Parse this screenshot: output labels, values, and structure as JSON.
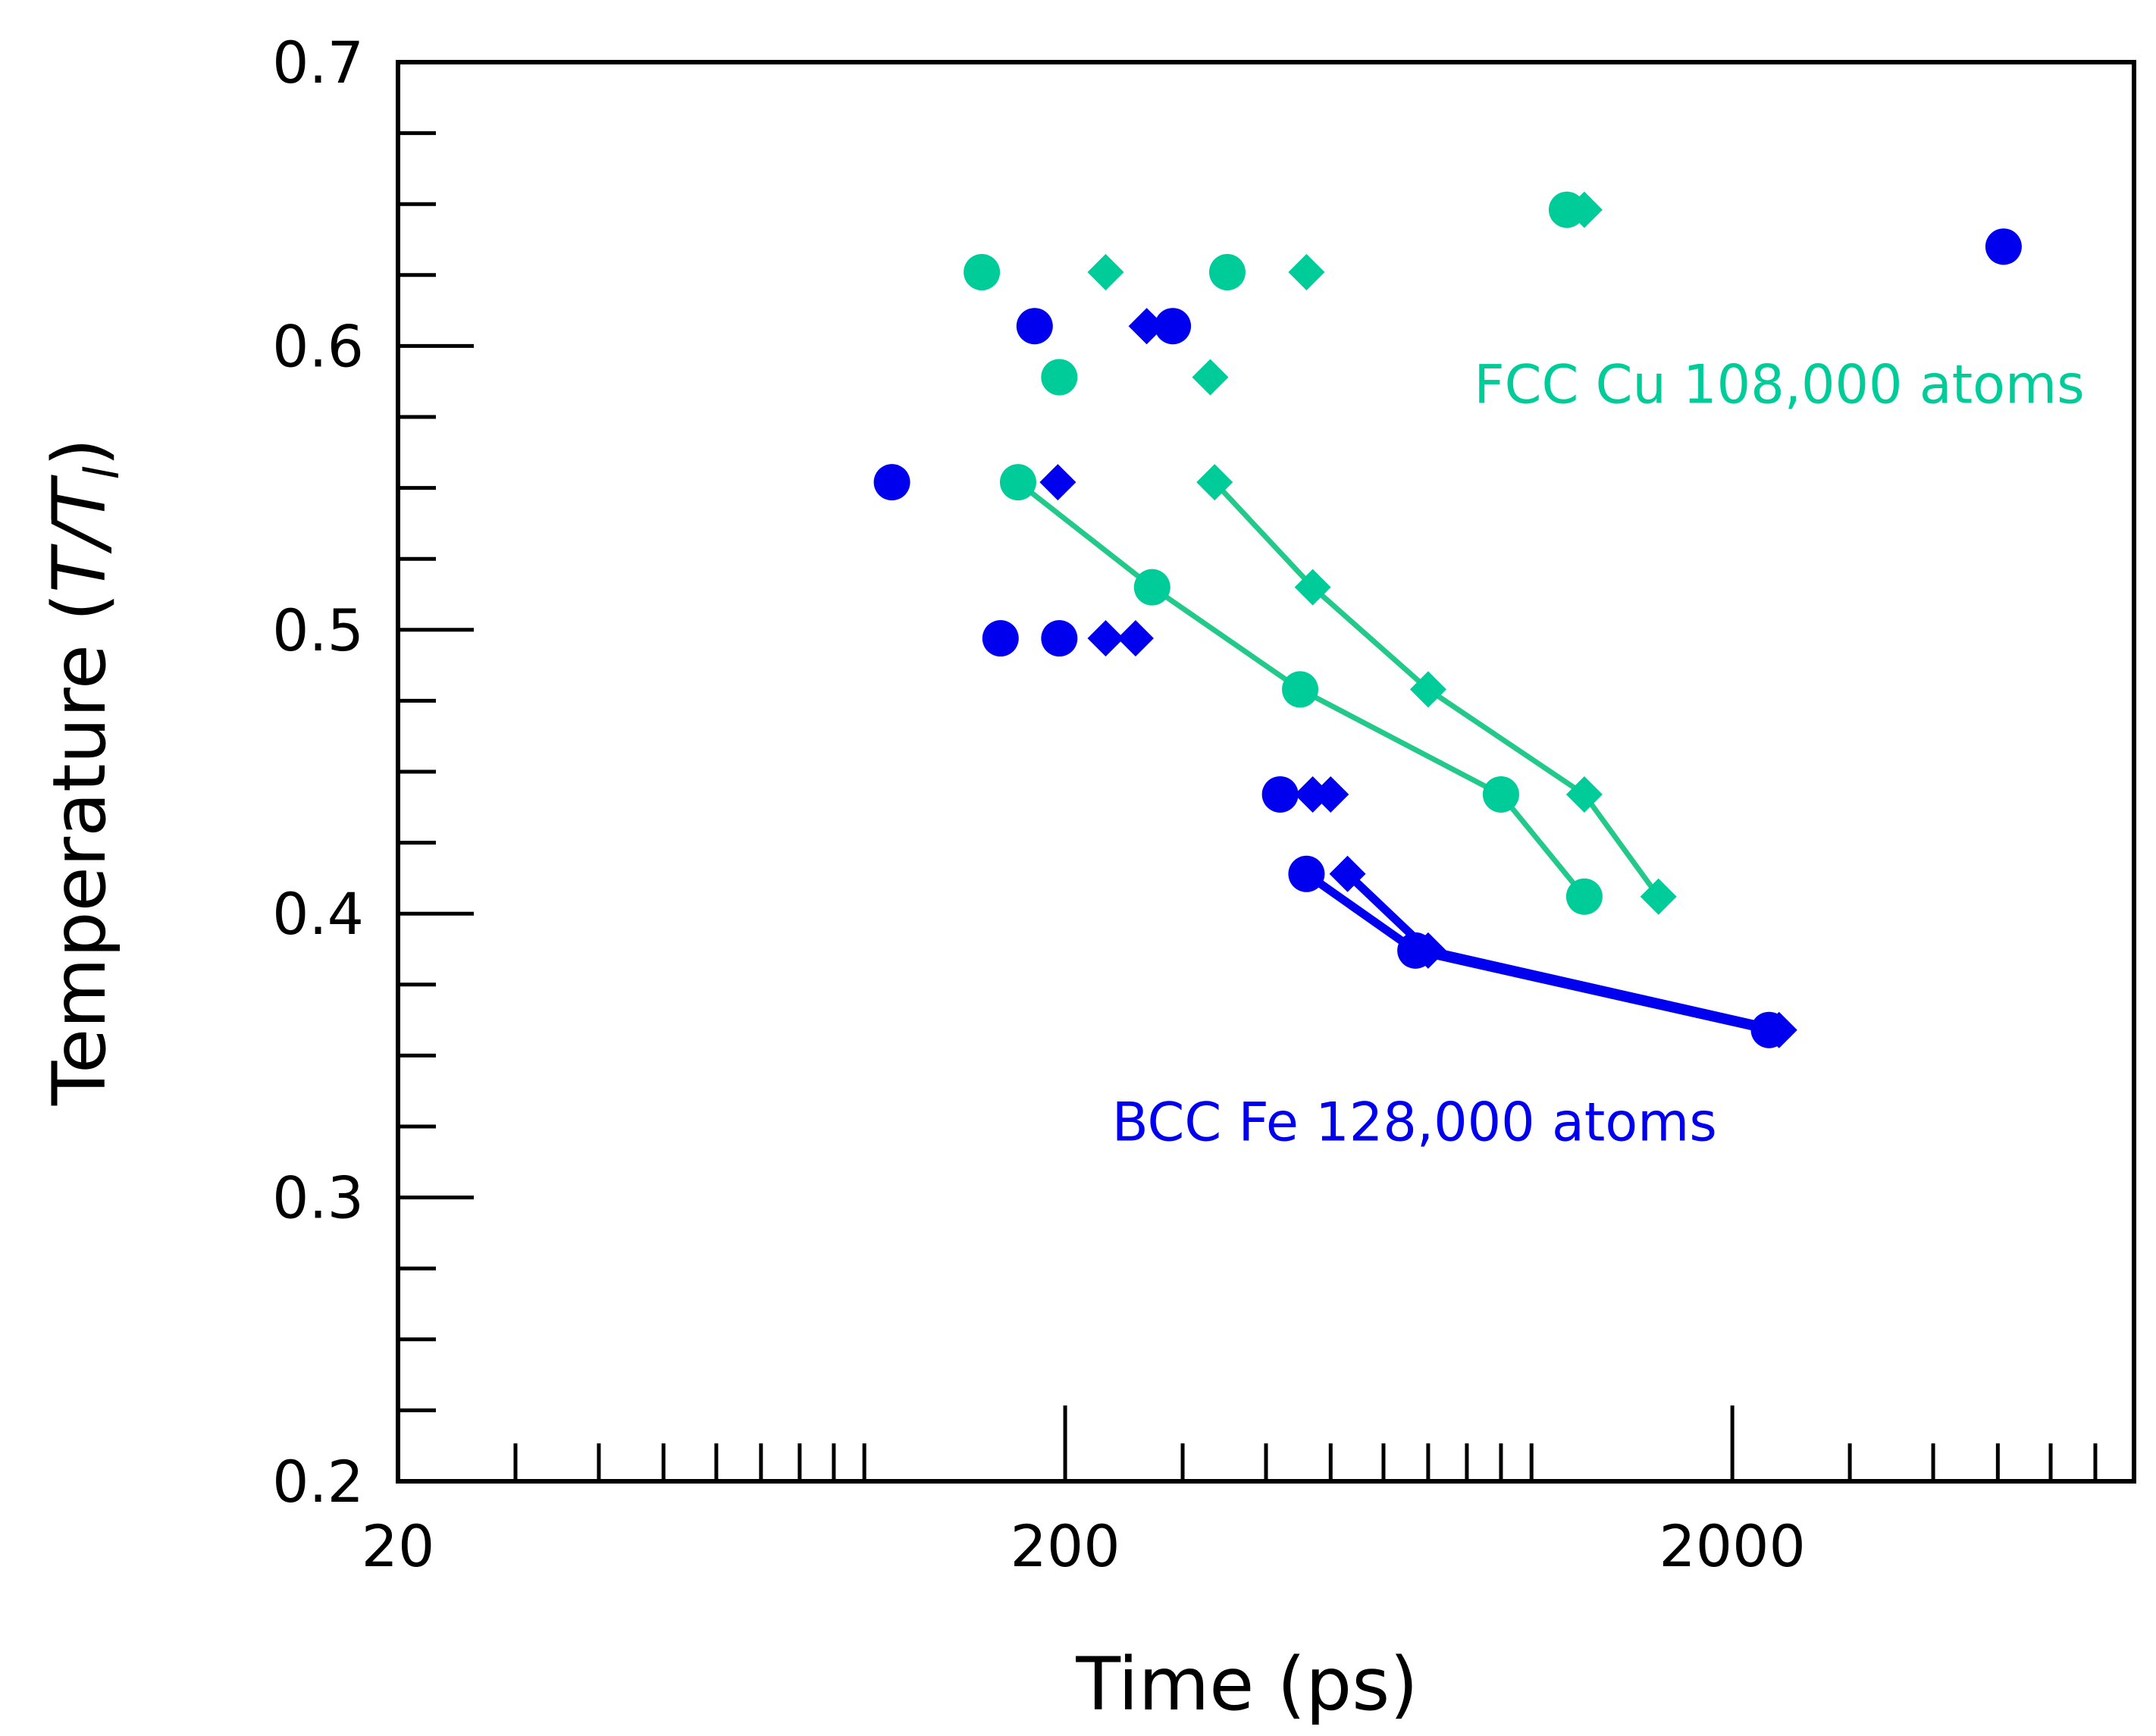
{
  "chart_data": {
    "type": "scatter",
    "title": "",
    "xlabel": "Time (ps)",
    "ylabel": "Temperature (",
    "ylabel_italic": "T/T",
    "ylabel_sub": "l",
    "ylabel_close": ")",
    "xscale": "log",
    "xlim": [
      20,
      8000
    ],
    "ylim": [
      0.2,
      0.7
    ],
    "xticks": [
      {
        "value": 20,
        "label": "20"
      },
      {
        "value": 200,
        "label": "200"
      },
      {
        "value": 2000,
        "label": "2000"
      }
    ],
    "yticks": [
      {
        "value": 0.2,
        "label": "0.2"
      },
      {
        "value": 0.3,
        "label": "0.3"
      },
      {
        "value": 0.4,
        "label": "0.4"
      },
      {
        "value": 0.5,
        "label": "0.5"
      },
      {
        "value": 0.6,
        "label": "0.6"
      },
      {
        "value": 0.7,
        "label": "0.7"
      }
    ],
    "colors": {
      "cu": "#00cc99",
      "cu_line": "#22c98a",
      "fe": "#0000ee"
    },
    "annotations": [
      {
        "text": "FCC Cu 108,000 atoms",
        "series": "cu",
        "x": 820,
        "y": 0.58
      },
      {
        "text": "BCC  Fe 128,000 atoms",
        "series": "fe",
        "x": 235,
        "y": 0.32
      }
    ],
    "series": [
      {
        "name": "Cu circles",
        "group": "cu",
        "marker": "circle",
        "points": [
          [
            150,
            0.626
          ],
          [
            196,
            0.589
          ],
          [
            170,
            0.552
          ],
          [
            270,
            0.515
          ],
          [
            450,
            0.479
          ],
          [
            900,
            0.442
          ],
          [
            1200,
            0.406
          ],
          [
            350,
            0.626
          ],
          [
            1130,
            0.648
          ]
        ],
        "line": [
          [
            170,
            0.552
          ],
          [
            270,
            0.515
          ],
          [
            450,
            0.479
          ],
          [
            900,
            0.442
          ],
          [
            1200,
            0.406
          ]
        ]
      },
      {
        "name": "Cu diamonds",
        "group": "cu",
        "marker": "diamond",
        "points": [
          [
            230,
            0.626
          ],
          [
            460,
            0.626
          ],
          [
            1200,
            0.648
          ],
          [
            330,
            0.589
          ],
          [
            335,
            0.552
          ],
          [
            470,
            0.515
          ],
          [
            700,
            0.479
          ],
          [
            1200,
            0.442
          ],
          [
            1550,
            0.406
          ]
        ],
        "line": [
          [
            335,
            0.552
          ],
          [
            470,
            0.515
          ],
          [
            700,
            0.479
          ],
          [
            1200,
            0.442
          ],
          [
            1550,
            0.406
          ]
        ]
      },
      {
        "name": "Fe circles",
        "group": "fe",
        "marker": "circle",
        "points": [
          [
            180,
            0.607
          ],
          [
            290,
            0.607
          ],
          [
            110,
            0.552
          ],
          [
            160,
            0.497
          ],
          [
            196,
            0.497
          ],
          [
            420,
            0.442
          ],
          [
            460,
            0.414
          ],
          [
            670,
            0.387
          ],
          [
            2270,
            0.359
          ],
          [
            5100,
            0.635
          ]
        ],
        "line": [
          [
            460,
            0.414
          ],
          [
            670,
            0.387
          ],
          [
            2270,
            0.359
          ]
        ]
      },
      {
        "name": "Fe diamonds",
        "group": "fe",
        "marker": "diamond",
        "points": [
          [
            265,
            0.607
          ],
          [
            195,
            0.552
          ],
          [
            230,
            0.497
          ],
          [
            255,
            0.497
          ],
          [
            470,
            0.442
          ],
          [
            500,
            0.442
          ],
          [
            530,
            0.414
          ],
          [
            700,
            0.387
          ],
          [
            2350,
            0.359
          ]
        ],
        "line": [
          [
            530,
            0.414
          ],
          [
            700,
            0.387
          ],
          [
            2350,
            0.359
          ]
        ]
      }
    ]
  }
}
